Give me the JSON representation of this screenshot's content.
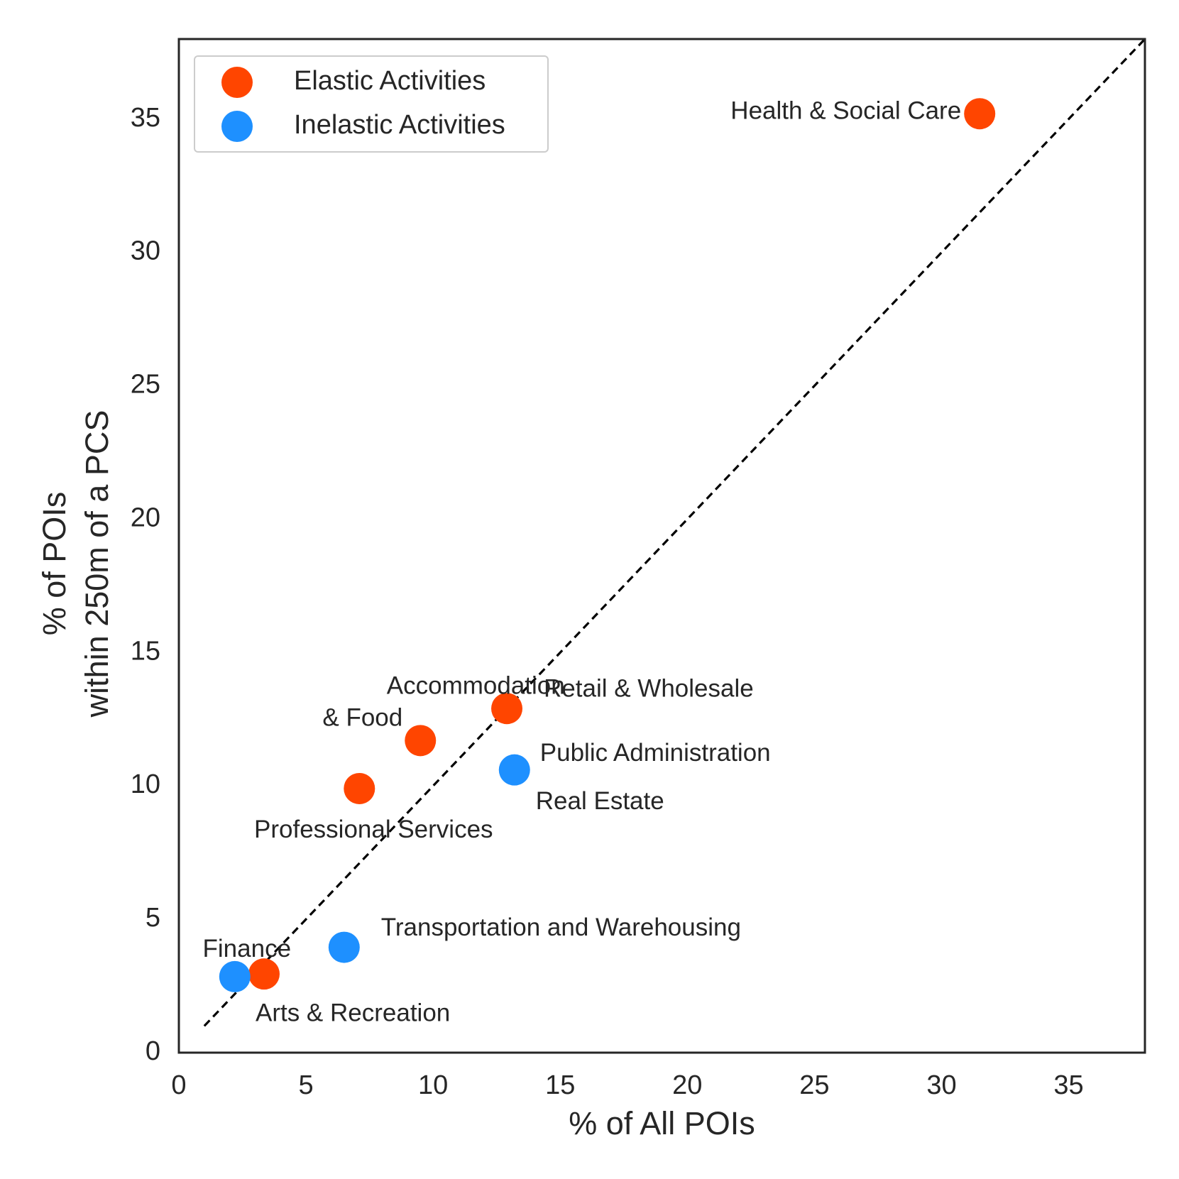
{
  "chart_data": {
    "type": "scatter",
    "title": "",
    "xlabel": "% of All POIs",
    "ylabel_lines": [
      "% of POIs",
      "within 250m of a PCS"
    ],
    "xlim": [
      0,
      38
    ],
    "ylim": [
      0,
      38
    ],
    "xticks": [
      0,
      5,
      10,
      15,
      20,
      25,
      30,
      35
    ],
    "yticks": [
      0,
      5,
      10,
      15,
      20,
      25,
      30,
      35
    ],
    "reference_line": {
      "style": "dashed",
      "from": [
        1,
        1
      ],
      "to": [
        38,
        38
      ]
    },
    "legend_position": "top-left",
    "series": [
      {
        "name": "Elastic Activities",
        "color": "#FF4500",
        "points": [
          {
            "label": "Health & Social Care",
            "x": 31.5,
            "y": 35.2,
            "label_lines": [
              "Health & Social Care"
            ],
            "label_pos": "left"
          },
          {
            "label": "Retail & Wholesale",
            "x": 12.9,
            "y": 12.9,
            "label_lines": [
              "Retail & Wholesale"
            ],
            "label_pos": "upper-right"
          },
          {
            "label": "Accommodation & Food",
            "x": 9.5,
            "y": 11.7,
            "label_lines": [
              "Accommodation",
              "& Food"
            ],
            "label_pos": "upper-left"
          },
          {
            "label": "Professional Services",
            "x": 7.1,
            "y": 9.9,
            "label_lines": [
              "Professional Services"
            ],
            "label_pos": "below"
          },
          {
            "label": "Arts & Recreation",
            "x": 3.35,
            "y": 2.95,
            "label_lines": [
              "Arts & Recreation"
            ],
            "label_pos": "lower-right"
          }
        ]
      },
      {
        "name": "Inelastic Activities",
        "color": "#1E90FF",
        "points": [
          {
            "label": "Public Administration / Real Estate",
            "x": 13.2,
            "y": 10.6,
            "label_lines": [
              "Public Administration",
              "Real Estate"
            ],
            "label_pos": "right-split"
          },
          {
            "label": "Transportation and Warehousing",
            "x": 6.5,
            "y": 3.95,
            "label_lines": [
              "Transportation and Warehousing"
            ],
            "label_pos": "upper-right"
          },
          {
            "label": "Finance",
            "x": 2.2,
            "y": 2.85,
            "label_lines": [
              "Finance"
            ],
            "label_pos": "above"
          }
        ]
      }
    ]
  }
}
